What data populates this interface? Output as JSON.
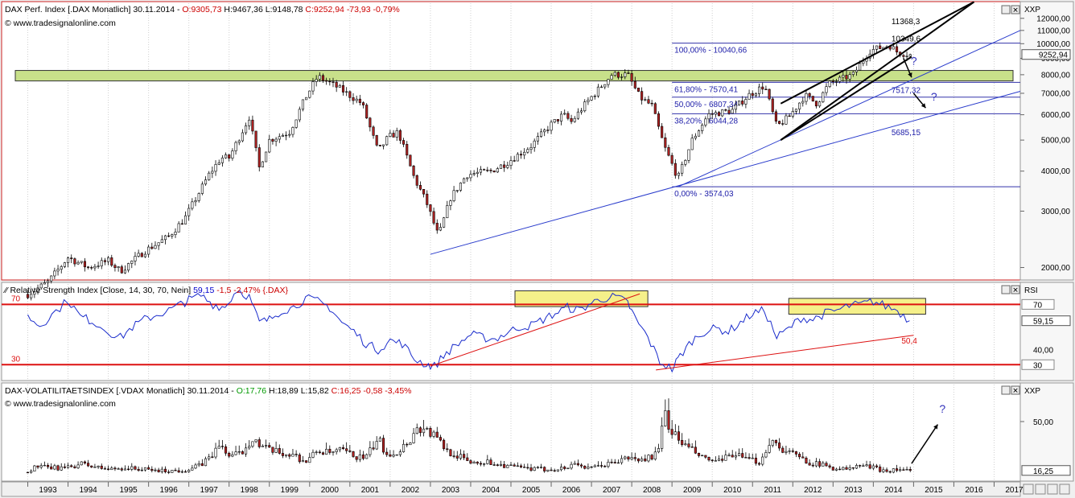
{
  "site": "www.tradesignalonline.com",
  "panel_buttons": [
    "▣",
    "✕"
  ],
  "chart_data": [
    {
      "type": "candlestick",
      "header": {
        "name": "DAX Perf. Index [.DAX Monatlich] 30.11.2014 - ",
        "open": "O:9305,73",
        "high": "H:9467,36",
        "low": "L:9148,78",
        "close": "C:9252,94",
        "change": "-73,93 -0,79%"
      },
      "scale": "log",
      "axis_label": "XXP",
      "y_ticks": [
        2000,
        3000,
        4000,
        5000,
        6000,
        7000,
        8000,
        9000,
        10000,
        11000,
        12000
      ],
      "y_tick_labels": [
        "2000,00",
        "3000,00",
        "4000,00",
        "5000,00",
        "6000,00",
        "7000,00",
        "8000,00",
        "9000,00",
        "10000,00",
        "11000,00",
        "12000,00"
      ],
      "ylim": [
        1850,
        13300
      ],
      "last_value": "9252,94",
      "fib_levels": [
        {
          "label": "100,00% - 10040,66",
          "value": 10040.66
        },
        {
          "label": "61,80% - 7570,41",
          "value": 7570.41
        },
        {
          "label": "50,00% - 6807,34",
          "value": 6807.34
        },
        {
          "label": "38,20% - 6044,28",
          "value": 6044.28
        },
        {
          "label": "0,00% - 3574,03",
          "value": 3574.03
        }
      ],
      "price_labels": [
        {
          "text": "11368,3",
          "value": 11368.3
        },
        {
          "text": "10349,6",
          "value": 10349.6
        },
        {
          "text": "7517,32",
          "value": 7517.32
        },
        {
          "text": "5685,15",
          "value": 5685.15
        }
      ],
      "resistance_zone": [
        7650,
        8250
      ],
      "annotations": [
        "?",
        "?"
      ],
      "monthly_closes_anchor": [
        [
          1993.0,
          1650
        ],
        [
          1993.5,
          1800
        ],
        [
          1994.0,
          2150
        ],
        [
          1994.5,
          2000
        ],
        [
          1995.0,
          2100
        ],
        [
          1995.3,
          1950
        ],
        [
          1995.9,
          2250
        ],
        [
          1996.5,
          2500
        ],
        [
          1996.9,
          2850
        ],
        [
          1997.5,
          3900
        ],
        [
          1997.8,
          4400
        ],
        [
          1998.0,
          4400
        ],
        [
          1998.5,
          5900
        ],
        [
          1998.75,
          4100
        ],
        [
          1999.0,
          5000
        ],
        [
          1999.5,
          5300
        ],
        [
          1999.9,
          6800
        ],
        [
          2000.2,
          7900
        ],
        [
          2000.7,
          7300
        ],
        [
          2001.3,
          6500
        ],
        [
          2001.7,
          4600
        ],
        [
          2001.95,
          5100
        ],
        [
          2002.2,
          5300
        ],
        [
          2002.6,
          3800
        ],
        [
          2002.9,
          3200
        ],
        [
          2003.2,
          2500
        ],
        [
          2003.5,
          3300
        ],
        [
          2003.9,
          3900
        ],
        [
          2004.5,
          4000
        ],
        [
          2004.9,
          4250
        ],
        [
          2005.5,
          4800
        ],
        [
          2006.0,
          5600
        ],
        [
          2006.3,
          6000
        ],
        [
          2006.5,
          5700
        ],
        [
          2006.9,
          6600
        ],
        [
          2007.5,
          8000
        ],
        [
          2007.9,
          8000
        ],
        [
          2008.2,
          6800
        ],
        [
          2008.5,
          6400
        ],
        [
          2008.8,
          4800
        ],
        [
          2009.15,
          3800
        ],
        [
          2009.5,
          5000
        ],
        [
          2009.9,
          6000
        ],
        [
          2010.5,
          6200
        ],
        [
          2010.9,
          6900
        ],
        [
          2011.3,
          7400
        ],
        [
          2011.6,
          5500
        ],
        [
          2011.9,
          5900
        ],
        [
          2012.3,
          6900
        ],
        [
          2012.6,
          6500
        ],
        [
          2012.9,
          7500
        ],
        [
          2013.5,
          8000
        ],
        [
          2013.9,
          9500
        ],
        [
          2014.4,
          9900
        ],
        [
          2014.6,
          9400
        ],
        [
          2014.9,
          9252.94
        ]
      ]
    },
    {
      "type": "line",
      "header": {
        "name": "Relative Strength Index [Close, 14, 30, 70, Nein]",
        "value": "59,15",
        "change": "-1,5 -2,47% {.DAX}"
      },
      "axis_label": "RSI",
      "y_tick_labels": [
        "70",
        "40,00",
        "30"
      ],
      "y_ticks": [
        70,
        40,
        30
      ],
      "ylim": [
        20,
        83
      ],
      "levels": [
        {
          "label": "70",
          "value": 70
        },
        {
          "label": "30",
          "value": 30
        }
      ],
      "last_value": "59,15",
      "price_labels": [
        {
          "text": "50,4",
          "value": 50.4
        }
      ],
      "x": [
        1993.0,
        1993.3,
        1993.6,
        1994.0,
        1994.3,
        1994.6,
        1995.0,
        1995.3,
        1995.6,
        1995.9,
        1996.2,
        1996.5,
        1996.8,
        1997.0,
        1997.3,
        1997.6,
        1997.9,
        1998.2,
        1998.5,
        1998.75,
        1999.0,
        1999.3,
        1999.6,
        1999.9,
        2000.2,
        2000.5,
        2000.8,
        2001.1,
        2001.4,
        2001.7,
        2002.0,
        2002.3,
        2002.6,
        2002.9,
        2003.1,
        2003.4,
        2003.7,
        2004.0,
        2004.3,
        2004.6,
        2004.9,
        2005.2,
        2005.5,
        2005.8,
        2006.1,
        2006.4,
        2006.7,
        2007.0,
        2007.3,
        2007.6,
        2007.9,
        2008.1,
        2008.4,
        2008.7,
        2009.0,
        2009.2,
        2009.5,
        2009.8,
        2010.1,
        2010.4,
        2010.7,
        2011.0,
        2011.3,
        2011.6,
        2011.9,
        2012.2,
        2012.5,
        2012.8,
        2013.1,
        2013.4,
        2013.7,
        2014.0,
        2014.3,
        2014.6,
        2014.9
      ],
      "values": [
        62,
        56,
        63,
        73,
        62,
        59,
        52,
        48,
        55,
        60,
        63,
        66,
        70,
        73,
        76,
        70,
        68,
        80,
        75,
        58,
        60,
        66,
        68,
        74,
        72,
        68,
        58,
        52,
        44,
        40,
        46,
        44,
        34,
        30,
        29,
        38,
        44,
        50,
        48,
        47,
        51,
        55,
        56,
        60,
        64,
        68,
        66,
        71,
        74,
        75,
        71,
        60,
        48,
        32,
        27,
        36,
        46,
        52,
        54,
        52,
        58,
        64,
        66,
        48,
        54,
        61,
        60,
        64,
        66,
        69,
        70,
        72,
        69,
        66,
        59.15
      ],
      "annotation_zones": [
        [
          2005.1,
          2008.4,
          68.5,
          79
        ],
        [
          2011.9,
          2015.3,
          63.5,
          74
        ]
      ],
      "trendlines": [
        [
          2003.0,
          29,
          2008.2,
          77
        ],
        [
          2008.6,
          26.5,
          2015.0,
          49.5
        ]
      ]
    },
    {
      "type": "candlestick",
      "header": {
        "name": "DAX-VOLATILITAETSINDEX [.VDAX Monatlich] 30.11.2014 - ",
        "open": "O:17,76",
        "high": "H:18,89",
        "low": "L:15,82",
        "close": "C:16,25",
        "change": "-0,58 -3,45%"
      },
      "axis_label": "XXP",
      "y_tick_labels": [
        "50,00"
      ],
      "y_ticks": [
        50
      ],
      "ylim": [
        10,
        75
      ],
      "last_value": "16,25",
      "annotations": [
        "?"
      ],
      "x": [
        1993.0,
        1993.2,
        1993.5,
        1994.0,
        1994.3,
        1994.6,
        1995.0,
        1995.4,
        1995.8,
        1996.3,
        1996.7,
        1997.0,
        1997.3,
        1997.6,
        1997.8,
        1998.0,
        1998.3,
        1998.6,
        1998.75,
        1999.0,
        1999.3,
        1999.6,
        1999.9,
        2000.2,
        2000.5,
        2000.8,
        2001.1,
        2001.4,
        2001.7,
        2001.9,
        2002.2,
        2002.5,
        2002.7,
        2002.9,
        2003.1,
        2003.4,
        2003.7,
        2004.0,
        2004.4,
        2004.8,
        2005.2,
        2005.6,
        2006.0,
        2006.4,
        2006.6,
        2006.9,
        2007.3,
        2007.6,
        2007.9,
        2008.2,
        2008.5,
        2008.7,
        2008.8,
        2008.95,
        2009.2,
        2009.5,
        2009.8,
        2010.2,
        2010.5,
        2010.8,
        2011.2,
        2011.45,
        2011.6,
        2011.8,
        2012.1,
        2012.4,
        2012.7,
        2013.0,
        2013.4,
        2013.7,
        2014.0,
        2014.3,
        2014.6,
        2014.9
      ],
      "values": [
        15,
        19,
        18,
        18,
        21,
        19,
        17,
        18,
        17,
        16,
        16,
        17,
        20,
        28,
        34,
        26,
        28,
        40,
        33,
        30,
        28,
        27,
        22,
        30,
        28,
        30,
        26,
        25,
        38,
        28,
        29,
        38,
        46,
        44,
        40,
        30,
        26,
        22,
        22,
        20,
        18,
        17,
        17,
        18,
        22,
        17,
        20,
        22,
        25,
        23,
        26,
        30,
        60,
        45,
        36,
        30,
        24,
        22,
        28,
        24,
        22,
        38,
        34,
        30,
        26,
        22,
        20,
        18,
        17,
        20,
        18,
        16,
        17,
        16.25
      ],
      "trend_arrow": true
    }
  ],
  "x_axis": {
    "years": [
      "1993",
      "1994",
      "1995",
      "1996",
      "1997",
      "1998",
      "1999",
      "2000",
      "2001",
      "2002",
      "2003",
      "2004",
      "2005",
      "2006",
      "2007",
      "2008",
      "2009",
      "2010",
      "2011",
      "2012",
      "2013",
      "2014",
      "2015",
      "2016",
      "2017"
    ],
    "start": 1992.35,
    "end": 2017.65
  }
}
